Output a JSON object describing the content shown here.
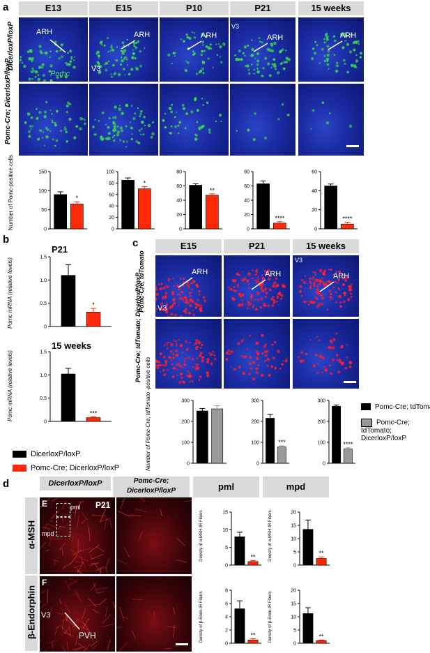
{
  "panel_letters": {
    "a": "a",
    "b": "b",
    "c": "c",
    "d": "d"
  },
  "panel_a": {
    "columns": [
      "E13",
      "E15",
      "P10",
      "P21",
      "15 weeks"
    ],
    "row1_label": "DicerloxP/loxP",
    "row2_label": "Pomc-Cre; DicerloxP/loxP",
    "annotations": {
      "arh": "ARH",
      "v3": "V3",
      "pomc": "Pomc"
    },
    "ylabel": "Number of Pomc-positive cells"
  },
  "panel_b": {
    "title_top": "P21",
    "title_bottom": "15 weeks",
    "ylabel": "Pomc mRNA (relative levels)",
    "legend": [
      "DicerloxP/loxP",
      "Pomc-Cre; DicerloxP/loxP"
    ]
  },
  "panel_c": {
    "columns": [
      "E15",
      "P21",
      "15 weeks"
    ],
    "row1_label": "Pomc-Cre; tdTomato",
    "row2_label": "Pomc-Cre; tdTomato; DicerloxP/loxP",
    "annotations": {
      "arh": "ARH",
      "v3": "V3"
    },
    "ylabel": "Number of Pomc-Cre; tdTomato -positive cells",
    "legend": [
      "Pomc-Cre; tdTomato",
      "Pomc-Cre; tdTomato; DicerloxP/loxP"
    ]
  },
  "panel_d": {
    "columns": [
      "DicerloxP/loxP",
      "Pomc-Cre; DicerloxP/loxP",
      "pml",
      "mpd"
    ],
    "rows": [
      "α-MSH",
      "β-Endorphin"
    ],
    "sub_e": "E",
    "sub_f": "F",
    "p21": "P21",
    "annotations": {
      "pml": "pml",
      "mpd": "mpd",
      "v3": "V3",
      "pvh": "PVH"
    },
    "ylabel_msh": "Density of α-MSH-IR Fibers",
    "ylabel_endo": "Density of β-Endo-IR Fibers"
  },
  "colors": {
    "control": "#000000",
    "mutant": "#ff2a0a",
    "tomato_mutant": "#999999",
    "blue_bg": "#1a2aa0",
    "red_bg": "#3a0508",
    "green_cell": "#39d84a",
    "red_cell": "#ff1e2e"
  },
  "chart_data": [
    {
      "type": "bar",
      "id": "a-E13",
      "categories": [
        "Dicer loxP/loxP",
        "Pomc-Cre; Dicer loxP/loxP"
      ],
      "values": [
        90,
        65
      ],
      "errors": [
        7,
        6
      ],
      "ylim": [
        0,
        150
      ],
      "yticks": [
        0,
        50,
        100,
        150
      ],
      "sig": "*"
    },
    {
      "type": "bar",
      "id": "a-E15",
      "categories": [
        "Dicer loxP/loxP",
        "Pomc-Cre; Dicer loxP/loxP"
      ],
      "values": [
        85,
        70
      ],
      "errors": [
        4,
        4
      ],
      "ylim": [
        0,
        100
      ],
      "yticks": [
        0,
        20,
        40,
        60,
        80,
        100
      ],
      "sig": "*"
    },
    {
      "type": "bar",
      "id": "a-P10",
      "categories": [
        "Dicer loxP/loxP",
        "Pomc-Cre; Dicer loxP/loxP"
      ],
      "values": [
        61,
        47
      ],
      "errors": [
        2,
        2
      ],
      "ylim": [
        0,
        80
      ],
      "yticks": [
        0,
        20,
        40,
        60,
        80
      ],
      "sig": "**"
    },
    {
      "type": "bar",
      "id": "a-P21",
      "categories": [
        "Dicer loxP/loxP",
        "Pomc-Cre; Dicer loxP/loxP"
      ],
      "values": [
        63,
        8
      ],
      "errors": [
        4,
        2
      ],
      "ylim": [
        0,
        80
      ],
      "yticks": [
        0,
        20,
        40,
        60,
        80
      ],
      "sig": "****"
    },
    {
      "type": "bar",
      "id": "a-15w",
      "categories": [
        "Dicer loxP/loxP",
        "Pomc-Cre; Dicer loxP/loxP"
      ],
      "values": [
        45,
        5
      ],
      "errors": [
        2,
        2
      ],
      "ylim": [
        0,
        60
      ],
      "yticks": [
        0,
        20,
        40,
        60
      ],
      "sig": "****"
    },
    {
      "type": "bar",
      "id": "b-P21",
      "categories": [
        "Dicer loxP/loxP",
        "Pomc-Cre; Dicer loxP/loxP"
      ],
      "values": [
        1.1,
        0.31
      ],
      "errors": [
        0.23,
        0.08
      ],
      "ylim": [
        0,
        1.5
      ],
      "yticks": [
        0,
        0.5,
        1.0,
        1.5
      ],
      "sig": "*"
    },
    {
      "type": "bar",
      "id": "b-15w",
      "categories": [
        "Dicer loxP/loxP",
        "Pomc-Cre; Dicer loxP/loxP"
      ],
      "values": [
        1.02,
        0.08
      ],
      "errors": [
        0.12,
        0.02
      ],
      "ylim": [
        0,
        1.5
      ],
      "yticks": [
        0,
        0.5,
        1.0,
        1.5
      ],
      "sig": "***"
    },
    {
      "type": "bar",
      "id": "c-E15",
      "categories": [
        "Pomc-Cre; tdTomato",
        "Pomc-Cre; tdTomato; Dicer loxP/loxP"
      ],
      "values": [
        250,
        260
      ],
      "errors": [
        12,
        15
      ],
      "ylim": [
        0,
        300
      ],
      "yticks": [
        0,
        100,
        200,
        300
      ],
      "sig": ""
    },
    {
      "type": "bar",
      "id": "c-P21",
      "categories": [
        "Pomc-Cre; tdTomato",
        "Pomc-Cre; tdTomato; Dicer loxP/loxP"
      ],
      "values": [
        215,
        78
      ],
      "errors": [
        18,
        5
      ],
      "ylim": [
        0,
        300
      ],
      "yticks": [
        0,
        100,
        200,
        300
      ],
      "sig": "***"
    },
    {
      "type": "bar",
      "id": "c-15w",
      "categories": [
        "Pomc-Cre; tdTomato",
        "Pomc-Cre; tdTomato; Dicer loxP/loxP"
      ],
      "values": [
        272,
        68
      ],
      "errors": [
        6,
        6
      ],
      "ylim": [
        0,
        300
      ],
      "yticks": [
        0,
        100,
        200,
        300
      ],
      "sig": "****"
    },
    {
      "type": "bar",
      "id": "d-msh-pml",
      "categories": [
        "Dicer loxP/loxP",
        "Pomc-Cre; Dicer loxP/loxP"
      ],
      "values": [
        8,
        1
      ],
      "errors": [
        1.3,
        0.3
      ],
      "ylim": [
        0,
        15
      ],
      "yticks": [
        0,
        5,
        10,
        15
      ],
      "sig": "**"
    },
    {
      "type": "bar",
      "id": "d-msh-mpd",
      "categories": [
        "Dicer loxP/loxP",
        "Pomc-Cre; Dicer loxP/loxP"
      ],
      "values": [
        13.5,
        2.5
      ],
      "errors": [
        3.5,
        0.6
      ],
      "ylim": [
        0,
        20
      ],
      "yticks": [
        0,
        5,
        10,
        15,
        20
      ],
      "sig": "**"
    },
    {
      "type": "bar",
      "id": "d-endo-pml",
      "categories": [
        "Dicer loxP/loxP",
        "Pomc-Cre; Dicer loxP/loxP"
      ],
      "values": [
        5.2,
        0.5
      ],
      "errors": [
        1.2,
        0.2
      ],
      "ylim": [
        0,
        8
      ],
      "yticks": [
        0,
        2,
        4,
        6,
        8
      ],
      "sig": "**"
    },
    {
      "type": "bar",
      "id": "d-endo-mpd",
      "categories": [
        "Dicer loxP/loxP",
        "Pomc-Cre; Dicer loxP/loxP"
      ],
      "values": [
        11.2,
        1.0
      ],
      "errors": [
        2.2,
        0.2
      ],
      "ylim": [
        0,
        20
      ],
      "yticks": [
        0,
        5,
        10,
        15,
        20
      ],
      "sig": "**"
    }
  ]
}
